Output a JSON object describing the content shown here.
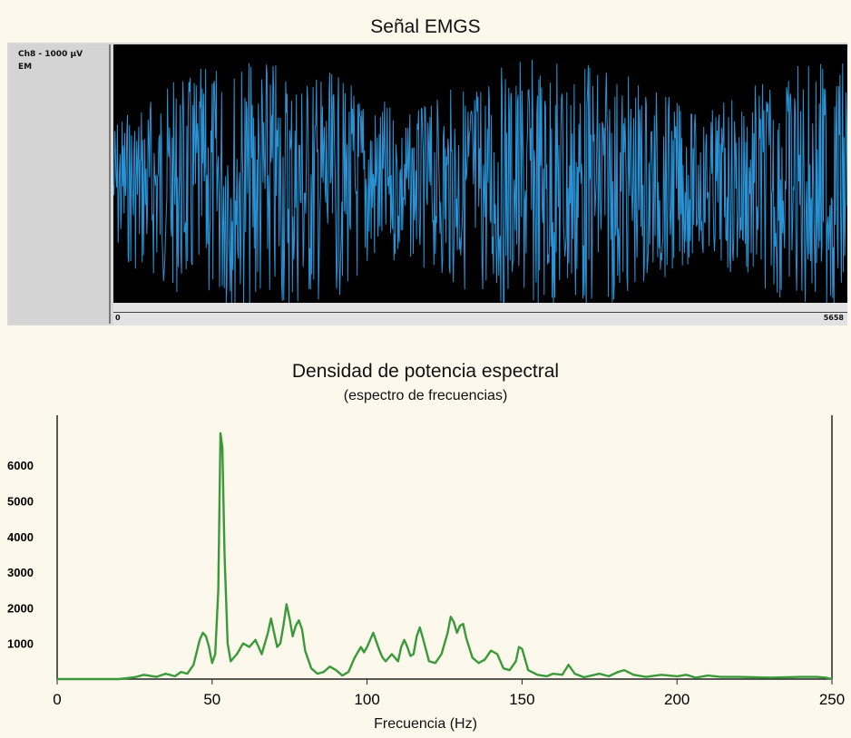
{
  "emg": {
    "title": "Señal EMGS",
    "channel_label": "Ch8 - 1000 µV",
    "channel_type": "EM",
    "axis_start": "0",
    "axis_end": "5658",
    "trace_color": "#2a93d5",
    "background_color": "#000000"
  },
  "chart_data": {
    "type": "line",
    "title": "Densidad de potencia espectral",
    "subtitle": "(espectro de frecuencias)",
    "xlabel": "Frecuencia (Hz)",
    "ylabel": "",
    "xlim": [
      0,
      250
    ],
    "ylim": [
      0,
      7200
    ],
    "xticks": [
      0,
      50,
      100,
      150,
      200,
      250
    ],
    "xtick_labels": [
      "0",
      "50",
      "100",
      "150",
      "200",
      "250"
    ],
    "yticks": [
      1000,
      2000,
      3000,
      4000,
      5000,
      6000
    ],
    "ytick_labels": [
      "1000",
      "2000",
      "3000",
      "4000",
      "5000",
      "6000"
    ],
    "grid": false,
    "line_color": "#3a9a3a",
    "series": [
      {
        "x": [
          0,
          20,
          25,
          28,
          32,
          35,
          38,
          40,
          42,
          44,
          46,
          47,
          48,
          49,
          50,
          51,
          52,
          52.7,
          53.3,
          54,
          55,
          56,
          57,
          58,
          60,
          62,
          64,
          66,
          68,
          69,
          70,
          71,
          72,
          73,
          74,
          75,
          76,
          77,
          78,
          79,
          80,
          82,
          84,
          86,
          88,
          90,
          92,
          94,
          96,
          98,
          99,
          100,
          101,
          102,
          103,
          104,
          105,
          106,
          108,
          110,
          111,
          112,
          113,
          114,
          115,
          116,
          117,
          118,
          120,
          122,
          124,
          126,
          127,
          128,
          129,
          130,
          131,
          132,
          134,
          136,
          138,
          140,
          142,
          144,
          146,
          148,
          149,
          150,
          152,
          155,
          158,
          160,
          163,
          165,
          167,
          170,
          175,
          178,
          181,
          183,
          186,
          190,
          195,
          200,
          203,
          206,
          210,
          214,
          220,
          230,
          240,
          245,
          248,
          250
        ],
        "y": [
          0,
          0,
          50,
          120,
          60,
          150,
          80,
          200,
          150,
          400,
          1100,
          1300,
          1200,
          900,
          450,
          700,
          2500,
          6900,
          6500,
          3500,
          1000,
          500,
          600,
          700,
          1000,
          900,
          1100,
          700,
          1300,
          1700,
          1300,
          900,
          1000,
          1500,
          2100,
          1700,
          1200,
          1500,
          1650,
          1400,
          800,
          300,
          150,
          200,
          350,
          250,
          100,
          200,
          600,
          900,
          750,
          900,
          1100,
          1300,
          1050,
          800,
          600,
          500,
          700,
          500,
          900,
          1100,
          900,
          650,
          700,
          1200,
          1450,
          1150,
          500,
          450,
          700,
          1300,
          1750,
          1600,
          1300,
          1500,
          1550,
          1150,
          600,
          450,
          550,
          800,
          700,
          300,
          250,
          500,
          900,
          850,
          250,
          120,
          80,
          150,
          120,
          400,
          150,
          50,
          150,
          80,
          200,
          250,
          120,
          60,
          120,
          80,
          120,
          40,
          100,
          60,
          60,
          40,
          60,
          60,
          40,
          0
        ]
      }
    ]
  }
}
